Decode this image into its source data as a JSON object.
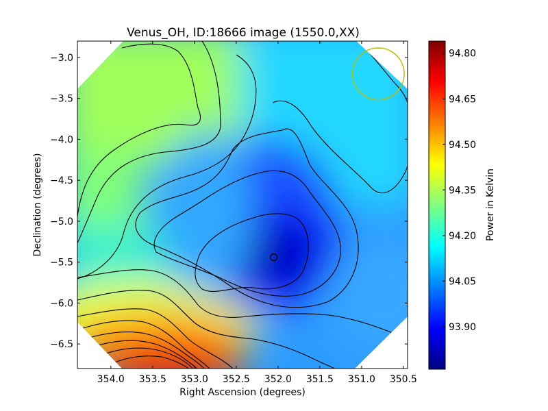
{
  "chart_data": {
    "type": "heatmap",
    "title": "Venus_OH, ID:18666 image (1550.0,XX)",
    "xlabel": "Right Ascension (degrees)",
    "ylabel": "Declination (degrees)",
    "xlim": [
      354.4,
      350.45
    ],
    "ylim": [
      -6.8,
      -2.8
    ],
    "x_ticks": [
      354.0,
      353.5,
      353.0,
      352.5,
      352.0,
      351.5,
      351.0,
      350.5
    ],
    "x_tick_labels": [
      "354.0",
      "353.5",
      "353.0",
      "352.5",
      "352.0",
      "351.5",
      "351.0",
      "350.5"
    ],
    "y_ticks": [
      -3.0,
      -3.5,
      -4.0,
      -4.5,
      -5.0,
      -5.5,
      -6.0,
      -6.5
    ],
    "y_tick_labels": [
      "−3.0",
      "−3.5",
      "−4.0",
      "−4.5",
      "−5.0",
      "−5.5",
      "−6.0",
      "−6.5"
    ],
    "colorbar": {
      "label": "Power in Kelvin",
      "range": [
        93.76,
        94.84
      ],
      "ticks": [
        94.8,
        94.65,
        94.5,
        94.35,
        94.2,
        94.05,
        93.9
      ],
      "tick_labels": [
        "94.80",
        "94.65",
        "94.50",
        "94.35",
        "94.20",
        "94.05",
        "93.90"
      ],
      "colormap": "jet"
    },
    "annotations": [
      {
        "type": "minimum-marker",
        "ra": 352.05,
        "dec": -5.44,
        "color": "#000000"
      },
      {
        "type": "beam-circle",
        "ra": 350.8,
        "dec": -3.2,
        "radius_deg": 0.31,
        "color": "#bdbd00"
      }
    ]
  }
}
